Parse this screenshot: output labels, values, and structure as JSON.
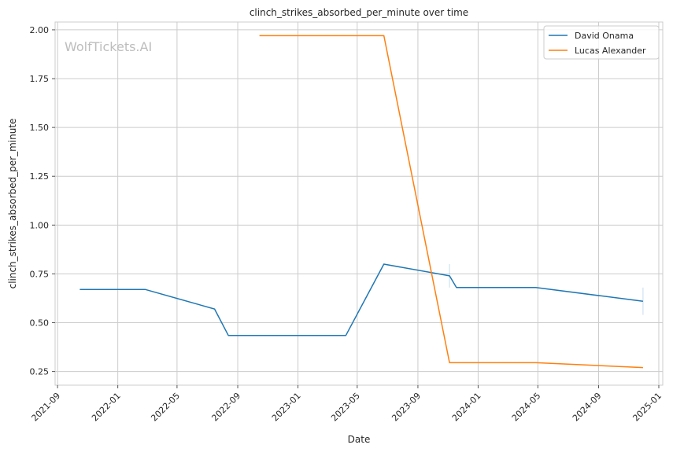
{
  "watermark": "WolfTickets.AI",
  "chart_data": {
    "type": "line",
    "title": "clinch_strikes_absorbed_per_minute over time",
    "xlabel": "Date",
    "ylabel": "clinch_strikes_absorbed_per_minute",
    "x_ticks": [
      "2021-09",
      "2022-01",
      "2022-05",
      "2022-09",
      "2023-01",
      "2023-05",
      "2023-09",
      "2024-01",
      "2024-05",
      "2024-09",
      "2025-01"
    ],
    "y_ticks": [
      "0.25",
      "0.50",
      "0.75",
      "1.00",
      "1.25",
      "1.50",
      "1.75",
      "2.00"
    ],
    "xlim": [
      "2021-08-27",
      "2025-01-09"
    ],
    "ylim": [
      0.18,
      2.04
    ],
    "grid": true,
    "legend_position": "top-right",
    "series": [
      {
        "name": "David Onama",
        "color": "#1f77b4",
        "points": [
          {
            "x": "2021-10-16",
            "y": 0.67
          },
          {
            "x": "2022-02-26",
            "y": 0.67
          },
          {
            "x": "2022-07-16",
            "y": 0.57
          },
          {
            "x": "2022-08-13",
            "y": 0.435
          },
          {
            "x": "2023-04-08",
            "y": 0.435
          },
          {
            "x": "2023-06-24",
            "y": 0.8
          },
          {
            "x": "2023-11-04",
            "y": 0.74
          },
          {
            "x": "2023-11-18",
            "y": 0.68
          },
          {
            "x": "2024-04-27",
            "y": 0.68
          },
          {
            "x": "2024-11-30",
            "y": 0.61
          }
        ],
        "error_bars": [
          {
            "x": "2023-11-04",
            "low": 0.68,
            "high": 0.8
          },
          {
            "x": "2024-11-30",
            "low": 0.54,
            "high": 0.68
          }
        ]
      },
      {
        "name": "Lucas Alexander",
        "color": "#ff7f0e",
        "points": [
          {
            "x": "2022-10-15",
            "y": 1.97
          },
          {
            "x": "2023-06-24",
            "y": 1.97
          },
          {
            "x": "2023-11-04",
            "y": 0.295
          },
          {
            "x": "2024-04-27",
            "y": 0.295
          },
          {
            "x": "2024-11-30",
            "y": 0.27
          }
        ]
      }
    ]
  }
}
